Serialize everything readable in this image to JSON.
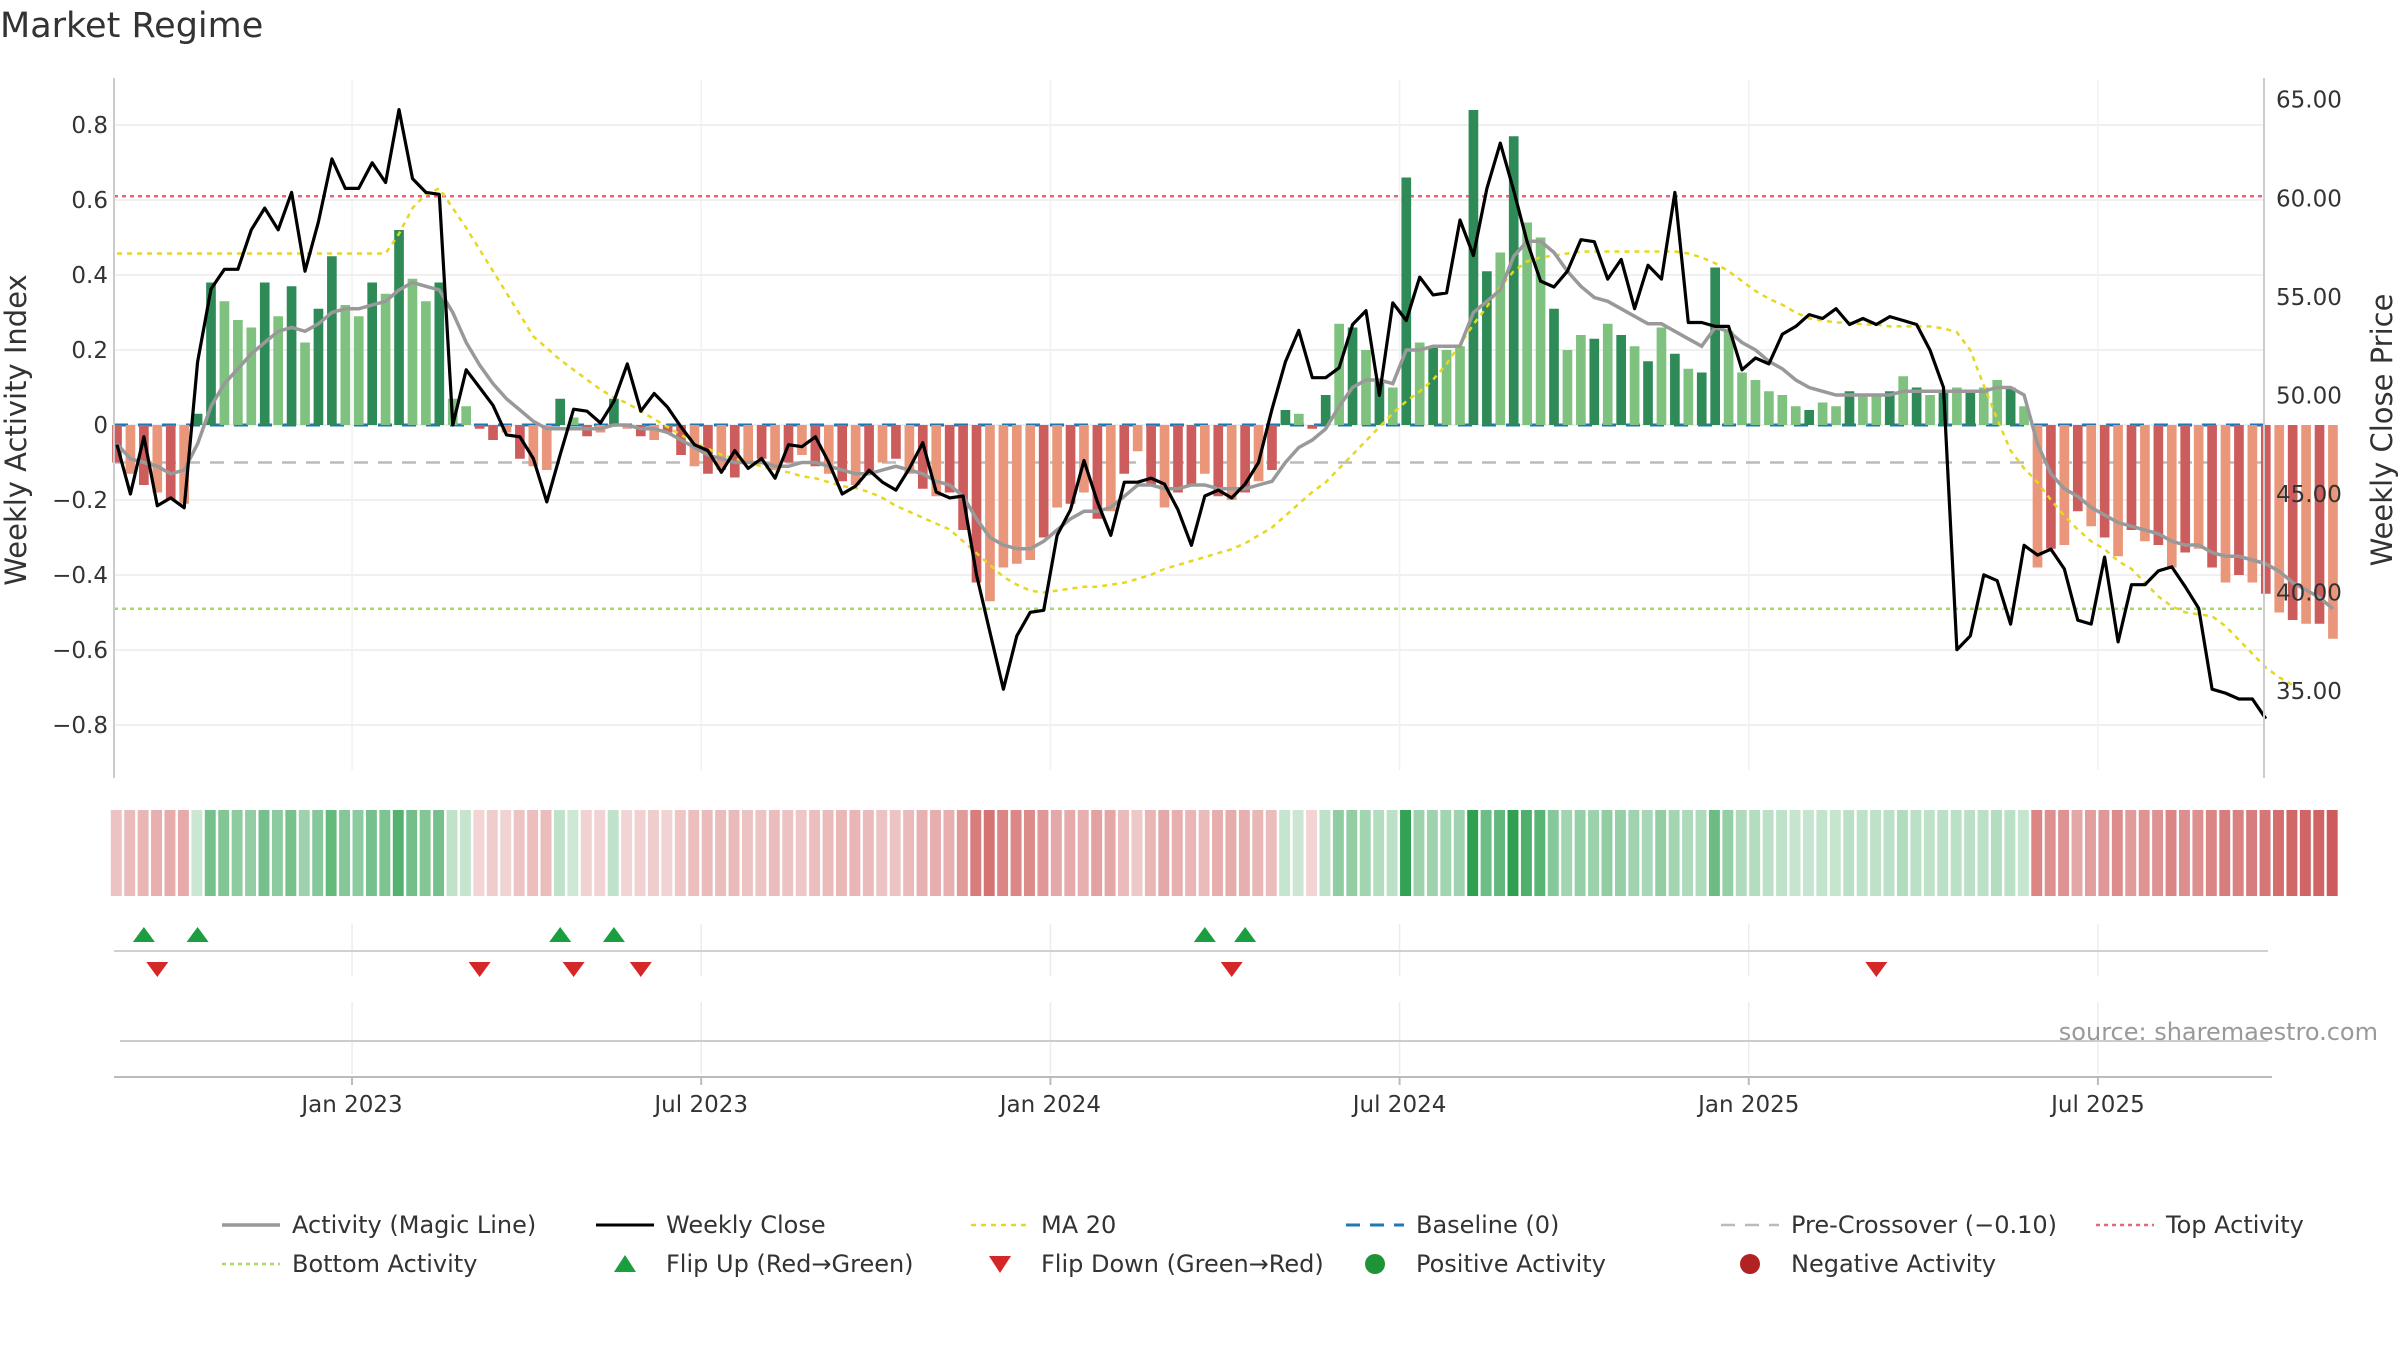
{
  "title": "Market Regime",
  "colors": {
    "positive_dark": "#2e8b57",
    "positive_light": "#7fc27f",
    "negative_dark": "#cd5c5c",
    "negative_light": "#e9967a",
    "close": "#000000",
    "magic": "#999999",
    "ma20": "#e6d81e",
    "baseline": "#1f77b4",
    "precross": "#bbbbbb",
    "top": "#e8677a",
    "bottom": "#a6d96a",
    "flip_up": "#1a9e3f",
    "flip_down": "#d62728",
    "pos_dot": "#1e9436",
    "neg_dot": "#b22222"
  },
  "source_text": "source: sharemaestro.com",
  "chart_data": {
    "type": "bar",
    "x_ticks": [
      "Jan 2023",
      "Jul 2023",
      "Jan 2024",
      "Jul 2024",
      "Jan 2025",
      "Jul 2025"
    ],
    "x_tick_weeks": [
      17.5,
      43.5,
      69.5,
      95.5,
      121.5,
      147.5
    ],
    "ylabel_left": "Weekly Activity Index",
    "ylabel_right": "Weekly Close Price",
    "ylim_left": [
      -0.92,
      0.92
    ],
    "ylim_right": [
      31.0,
      66.0
    ],
    "yticks_left": [
      "0.8",
      "0.6",
      "0.4",
      "0.2",
      "0",
      "−0.2",
      "−0.4",
      "−0.6",
      "−0.8"
    ],
    "yticks_left_values": [
      0.8,
      0.6,
      0.4,
      0.2,
      0,
      -0.2,
      -0.4,
      -0.6,
      -0.8
    ],
    "yticks_right": [
      "65.00",
      "60.00",
      "55.00",
      "50.00",
      "45.00",
      "40.00",
      "35.00"
    ],
    "yticks_right_values": [
      65,
      60,
      55,
      50,
      45,
      40,
      35
    ],
    "top_activity": 0.61,
    "bottom_activity": -0.49,
    "pre_crossover": -0.1,
    "baseline": 0,
    "activity": [
      -0.1,
      -0.13,
      -0.16,
      -0.18,
      -0.2,
      -0.21,
      0.03,
      0.38,
      0.33,
      0.28,
      0.26,
      0.38,
      0.29,
      0.37,
      0.22,
      0.31,
      0.45,
      0.32,
      0.29,
      0.38,
      0.35,
      0.52,
      0.39,
      0.33,
      0.38,
      0.07,
      0.05,
      -0.01,
      -0.04,
      -0.02,
      -0.09,
      -0.11,
      -0.12,
      0.07,
      0.02,
      -0.03,
      -0.02,
      0.07,
      -0.01,
      -0.03,
      -0.04,
      -0.02,
      -0.08,
      -0.11,
      -0.13,
      -0.12,
      -0.14,
      -0.1,
      -0.09,
      -0.12,
      -0.1,
      -0.08,
      -0.11,
      -0.13,
      -0.15,
      -0.16,
      -0.13,
      -0.1,
      -0.09,
      -0.13,
      -0.17,
      -0.19,
      -0.18,
      -0.28,
      -0.42,
      -0.47,
      -0.38,
      -0.37,
      -0.36,
      -0.3,
      -0.22,
      -0.21,
      -0.18,
      -0.25,
      -0.23,
      -0.13,
      -0.07,
      -0.16,
      -0.22,
      -0.18,
      -0.16,
      -0.13,
      -0.19,
      -0.2,
      -0.18,
      -0.15,
      -0.12,
      0.04,
      0.03,
      -0.01,
      0.08,
      0.27,
      0.26,
      0.2,
      0.12,
      0.1,
      0.66,
      0.22,
      0.21,
      0.2,
      0.21,
      0.84,
      0.41,
      0.46,
      0.77,
      0.54,
      0.5,
      0.31,
      0.2,
      0.24,
      0.23,
      0.27,
      0.24,
      0.21,
      0.17,
      0.26,
      0.19,
      0.15,
      0.14,
      0.42,
      0.25,
      0.14,
      0.12,
      0.09,
      0.08,
      0.05,
      0.04,
      0.06,
      0.05,
      0.09,
      0.08,
      0.08,
      0.09,
      0.13,
      0.1,
      0.08,
      0.09,
      0.1,
      0.09,
      0.1,
      0.12,
      0.1,
      0.05,
      -0.38,
      -0.33,
      -0.32,
      -0.23,
      -0.27,
      -0.3,
      -0.35,
      -0.28,
      -0.31,
      -0.32,
      -0.38,
      -0.34,
      -0.33,
      -0.38,
      -0.42,
      -0.4,
      -0.42,
      -0.45,
      -0.5,
      -0.52,
      -0.53,
      -0.53,
      -0.57
    ],
    "activity_shade": [
      1,
      0,
      1,
      0,
      1,
      0,
      1,
      1,
      0,
      0,
      0,
      1,
      0,
      1,
      0,
      1,
      1,
      0,
      0,
      1,
      0,
      1,
      0,
      0,
      1,
      0,
      0,
      1,
      1,
      0,
      1,
      0,
      0,
      1,
      0,
      1,
      0,
      1,
      0,
      1,
      0,
      1,
      1,
      0,
      1,
      0,
      1,
      0,
      1,
      0,
      1,
      0,
      1,
      0,
      1,
      0,
      1,
      0,
      1,
      0,
      1,
      0,
      1,
      1,
      1,
      0,
      0,
      0,
      0,
      1,
      0,
      1,
      0,
      1,
      0,
      1,
      0,
      1,
      0,
      1,
      1,
      0,
      1,
      0,
      1,
      0,
      1,
      1,
      0,
      1,
      1,
      0,
      1,
      0,
      1,
      0,
      1,
      0,
      1,
      0,
      0,
      1,
      1,
      0,
      1,
      0,
      0,
      1,
      0,
      0,
      1,
      0,
      1,
      0,
      1,
      0,
      1,
      0,
      1,
      1,
      0,
      0,
      0,
      0,
      0,
      0,
      1,
      0,
      0,
      1,
      0,
      0,
      1,
      0,
      1,
      0,
      1,
      0,
      1,
      0,
      0,
      1,
      0,
      0,
      1,
      0,
      1,
      0,
      1,
      0,
      1,
      0,
      1,
      0,
      1,
      0,
      1,
      0,
      1,
      0,
      1,
      0,
      1,
      0,
      1
    ],
    "magic_line": [
      -0.05,
      -0.09,
      -0.1,
      -0.11,
      -0.13,
      -0.12,
      -0.05,
      0.05,
      0.11,
      0.15,
      0.19,
      0.22,
      0.25,
      0.26,
      0.25,
      0.27,
      0.3,
      0.31,
      0.31,
      0.32,
      0.33,
      0.36,
      0.38,
      0.37,
      0.36,
      0.3,
      0.22,
      0.16,
      0.11,
      0.07,
      0.04,
      0.01,
      -0.01,
      -0.01,
      -0.01,
      -0.01,
      -0.01,
      0.0,
      0.0,
      -0.01,
      -0.01,
      -0.02,
      -0.04,
      -0.06,
      -0.08,
      -0.09,
      -0.1,
      -0.1,
      -0.1,
      -0.11,
      -0.11,
      -0.1,
      -0.1,
      -0.11,
      -0.12,
      -0.13,
      -0.13,
      -0.12,
      -0.11,
      -0.12,
      -0.13,
      -0.15,
      -0.16,
      -0.19,
      -0.25,
      -0.3,
      -0.32,
      -0.33,
      -0.33,
      -0.31,
      -0.28,
      -0.25,
      -0.23,
      -0.23,
      -0.22,
      -0.19,
      -0.16,
      -0.16,
      -0.17,
      -0.17,
      -0.16,
      -0.16,
      -0.17,
      -0.17,
      -0.17,
      -0.16,
      -0.15,
      -0.1,
      -0.06,
      -0.04,
      -0.01,
      0.05,
      0.1,
      0.12,
      0.12,
      0.11,
      0.2,
      0.2,
      0.21,
      0.21,
      0.21,
      0.3,
      0.33,
      0.36,
      0.45,
      0.49,
      0.49,
      0.46,
      0.41,
      0.37,
      0.34,
      0.33,
      0.31,
      0.29,
      0.27,
      0.27,
      0.25,
      0.23,
      0.21,
      0.26,
      0.25,
      0.22,
      0.2,
      0.17,
      0.15,
      0.12,
      0.1,
      0.09,
      0.08,
      0.08,
      0.08,
      0.08,
      0.08,
      0.09,
      0.09,
      0.09,
      0.09,
      0.09,
      0.09,
      0.09,
      0.1,
      0.1,
      0.08,
      -0.05,
      -0.13,
      -0.17,
      -0.19,
      -0.22,
      -0.24,
      -0.26,
      -0.27,
      -0.28,
      -0.29,
      -0.31,
      -0.32,
      -0.32,
      -0.34,
      -0.35,
      -0.35,
      -0.36,
      -0.37,
      -0.39,
      -0.42,
      -0.44,
      -0.46,
      -0.49
    ],
    "weekly_close": [
      47.5,
      45.0,
      47.9,
      44.4,
      44.8,
      44.3,
      51.7,
      55.4,
      56.4,
      56.4,
      58.4,
      59.5,
      58.4,
      60.3,
      56.3,
      58.8,
      62.0,
      60.5,
      60.5,
      61.8,
      60.8,
      64.5,
      61.0,
      60.3,
      60.2,
      48.5,
      51.3,
      50.4,
      49.5,
      48.0,
      47.9,
      46.8,
      44.6,
      47.0,
      49.3,
      49.2,
      48.6,
      49.7,
      51.6,
      49.2,
      50.1,
      49.4,
      48.4,
      47.5,
      47.2,
      46.1,
      47.2,
      46.3,
      46.8,
      45.8,
      47.5,
      47.4,
      47.9,
      46.6,
      45.0,
      45.4,
      46.2,
      45.6,
      45.2,
      46.3,
      47.6,
      45.1,
      44.8,
      44.9,
      40.9,
      38.0,
      35.1,
      37.8,
      39.0,
      39.1,
      42.9,
      44.2,
      46.7,
      44.6,
      42.9,
      45.6,
      45.6,
      45.8,
      45.5,
      44.2,
      42.4,
      44.9,
      45.2,
      44.8,
      45.5,
      46.6,
      49.3,
      51.7,
      53.3,
      50.9,
      50.9,
      51.4,
      53.6,
      54.3,
      50.0,
      54.7,
      53.8,
      56.0,
      55.1,
      55.2,
      58.9,
      57.1,
      60.5,
      62.8,
      60.4,
      57.8,
      55.8,
      55.5,
      56.3,
      57.9,
      57.8,
      55.9,
      56.9,
      54.4,
      56.6,
      55.9,
      60.3,
      53.7,
      53.7,
      53.5,
      53.5,
      51.3,
      51.9,
      51.6,
      53.1,
      53.5,
      54.1,
      53.9,
      54.4,
      53.6,
      53.9,
      53.6,
      54.0,
      53.8,
      53.6,
      52.3,
      50.4,
      37.1,
      37.8,
      40.9,
      40.6,
      38.4,
      42.4,
      41.9,
      42.2,
      41.2,
      38.6,
      38.4,
      41.8,
      37.5,
      40.4,
      40.4,
      41.1,
      41.3,
      40.3,
      39.2,
      35.1,
      34.9,
      34.6,
      34.6,
      33.6
    ],
    "ma20": [
      57.2,
      57.2,
      57.2,
      57.2,
      57.2,
      57.2,
      57.2,
      57.2,
      57.2,
      57.2,
      57.2,
      57.2,
      57.2,
      57.2,
      57.2,
      57.2,
      57.2,
      57.2,
      57.2,
      57.2,
      57.2,
      58.2,
      59.5,
      60.2,
      60.5,
      59.5,
      58.5,
      57.4,
      56.3,
      55.2,
      54.1,
      53.0,
      52.4,
      51.8,
      51.3,
      50.8,
      50.3,
      49.9,
      49.6,
      49.2,
      48.8,
      48.4,
      48.0,
      47.6,
      47.3,
      47.0,
      46.8,
      46.6,
      46.4,
      46.2,
      46.1,
      45.9,
      45.8,
      45.6,
      45.4,
      45.3,
      45.1,
      44.8,
      44.4,
      44.1,
      43.8,
      43.5,
      43.2,
      42.6,
      42.0,
      41.4,
      40.8,
      40.4,
      40.1,
      40.0,
      40.1,
      40.2,
      40.3,
      40.3,
      40.4,
      40.5,
      40.7,
      40.9,
      41.2,
      41.4,
      41.6,
      41.8,
      42.0,
      42.2,
      42.5,
      42.9,
      43.3,
      43.9,
      44.5,
      45.1,
      45.6,
      46.3,
      47.0,
      47.7,
      48.4,
      49.1,
      49.7,
      50.2,
      50.8,
      51.6,
      52.6,
      53.6,
      54.5,
      55.5,
      56.3,
      56.8,
      57.0,
      57.1,
      57.2,
      57.3,
      57.3,
      57.3,
      57.3,
      57.3,
      57.3,
      57.3,
      57.3,
      57.2,
      57.0,
      56.7,
      56.3,
      55.8,
      55.3,
      54.9,
      54.6,
      54.2,
      53.9,
      53.8,
      53.7,
      53.7,
      53.6,
      53.6,
      53.5,
      53.5,
      53.5,
      53.5,
      53.4,
      53.2,
      52.3,
      50.5,
      48.8,
      47.2,
      46.3,
      45.6,
      44.7,
      43.9,
      43.2,
      42.6,
      42.2,
      41.6,
      41.2,
      40.5,
      39.8,
      39.3,
      39.0,
      38.9,
      38.8,
      38.3,
      37.6,
      36.9,
      36.2,
      35.7,
      35.3
    ],
    "flip_up_weeks": [
      2,
      6,
      33,
      37,
      81,
      84
    ],
    "flip_down_weeks": [
      3,
      27,
      34,
      39,
      83,
      131
    ],
    "legend": [
      "Activity (Magic Line)",
      "Weekly Close",
      "MA 20",
      "Baseline (0)",
      "Pre-Crossover (−0.10)",
      "Top Activity",
      "Bottom Activity",
      "Flip Up (Red→Green)",
      "Flip Down (Green→Red)",
      "Positive Activity",
      "Negative Activity"
    ],
    "legend_placement": "bottom",
    "grid": true
  }
}
